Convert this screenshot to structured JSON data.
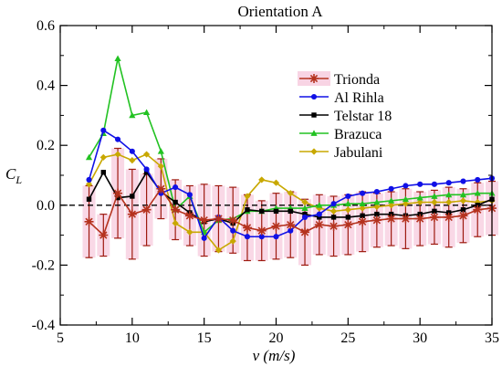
{
  "chart_data": {
    "type": "line",
    "title": "Orientation A",
    "xlabel": "v (m/s)",
    "ylabel_main": "C",
    "ylabel_sub": "L",
    "xlim": [
      5,
      35
    ],
    "ylim": [
      -0.4,
      0.6
    ],
    "xticks": [
      5,
      10,
      15,
      20,
      25,
      30,
      35
    ],
    "yticks": [
      -0.4,
      -0.2,
      0.0,
      0.2,
      0.4,
      0.6
    ],
    "xtick_labels": [
      "5",
      "10",
      "15",
      "20",
      "25",
      "30",
      "35"
    ],
    "ytick_labels": [
      "-0.4",
      "-0.2",
      "0.0",
      "0.2",
      "0.4",
      "0.6"
    ],
    "grid": false,
    "legend_position": "top-right",
    "zero_line": true,
    "series": [
      {
        "name": "Trionda",
        "color": "#b5321e",
        "marker": "asterisk",
        "error_color": "#9e1a10",
        "band_color": "#f4b8d2",
        "x": [
          7,
          8,
          9,
          10,
          11,
          12,
          13,
          14,
          15,
          16,
          17,
          18,
          19,
          20,
          21,
          22,
          23,
          24,
          25,
          26,
          27,
          28,
          29,
          30,
          31,
          32,
          33,
          34,
          35
        ],
        "y": [
          -0.055,
          -0.1,
          0.04,
          -0.03,
          -0.015,
          0.055,
          -0.015,
          -0.035,
          -0.05,
          -0.045,
          -0.05,
          -0.075,
          -0.085,
          -0.07,
          -0.065,
          -0.09,
          -0.065,
          -0.07,
          -0.065,
          -0.055,
          -0.05,
          -0.045,
          -0.045,
          -0.045,
          -0.04,
          -0.04,
          -0.035,
          -0.015,
          -0.01
        ],
        "err": [
          0.12,
          0.07,
          0.15,
          0.15,
          0.12,
          0.1,
          0.1,
          0.1,
          0.12,
          0.11,
          0.11,
          0.11,
          0.1,
          0.11,
          0.11,
          0.11,
          0.1,
          0.1,
          0.1,
          0.1,
          0.09,
          0.09,
          0.1,
          0.09,
          0.09,
          0.1,
          0.09,
          0.09,
          0.09
        ]
      },
      {
        "name": "Al Rihla",
        "color": "#1010e6",
        "marker": "circle",
        "x": [
          7,
          8,
          9,
          10,
          11,
          12,
          13,
          14,
          15,
          16,
          17,
          18,
          19,
          20,
          21,
          22,
          23,
          24,
          25,
          26,
          27,
          28,
          29,
          30,
          31,
          32,
          33,
          34,
          35
        ],
        "y": [
          0.085,
          0.25,
          0.22,
          0.18,
          0.12,
          0.04,
          0.06,
          0.035,
          -0.11,
          -0.04,
          -0.085,
          -0.105,
          -0.105,
          -0.105,
          -0.085,
          -0.04,
          -0.03,
          0.005,
          0.03,
          0.04,
          0.045,
          0.055,
          0.065,
          0.07,
          0.07,
          0.075,
          0.08,
          0.085,
          0.09
        ]
      },
      {
        "name": "Telstar 18",
        "color": "#000000",
        "marker": "square",
        "x": [
          7,
          8,
          9,
          10,
          11,
          12,
          13,
          14,
          15,
          16,
          17,
          18,
          19,
          20,
          21,
          22,
          23,
          24,
          25,
          26,
          27,
          28,
          29,
          30,
          31,
          32,
          33,
          34,
          35
        ],
        "y": [
          0.02,
          0.11,
          0.025,
          0.03,
          0.11,
          0.045,
          0.01,
          -0.025,
          -0.055,
          -0.045,
          -0.06,
          -0.015,
          -0.02,
          -0.02,
          -0.02,
          -0.03,
          -0.04,
          -0.04,
          -0.04,
          -0.035,
          -0.03,
          -0.03,
          -0.035,
          -0.03,
          -0.02,
          -0.025,
          -0.015,
          0.0,
          0.02
        ]
      },
      {
        "name": "Brazuca",
        "color": "#22c222",
        "marker": "triangle",
        "x": [
          7,
          8,
          9,
          10,
          11,
          12,
          13,
          14,
          15,
          16,
          17,
          18,
          19,
          20,
          21,
          22,
          23,
          24,
          25,
          26,
          27,
          28,
          29,
          30,
          31,
          32,
          33,
          34,
          35
        ],
        "y": [
          0.16,
          0.24,
          0.49,
          0.3,
          0.31,
          0.18,
          -0.015,
          0.03,
          -0.09,
          -0.05,
          -0.045,
          -0.02,
          -0.02,
          -0.01,
          -0.01,
          -0.01,
          0.0,
          0.0,
          0.005,
          0.005,
          0.01,
          0.015,
          0.02,
          0.025,
          0.03,
          0.035,
          0.035,
          0.04,
          0.04
        ]
      },
      {
        "name": "Jabulani",
        "color": "#c8a800",
        "marker": "diamond",
        "x": [
          7,
          8,
          9,
          10,
          11,
          12,
          13,
          14,
          15,
          16,
          17,
          18,
          19,
          20,
          21,
          22,
          23,
          24,
          25,
          26,
          27,
          28,
          29,
          30,
          31,
          32,
          33,
          34,
          35
        ],
        "y": [
          0.07,
          0.16,
          0.17,
          0.15,
          0.17,
          0.13,
          -0.06,
          -0.09,
          -0.09,
          -0.15,
          -0.12,
          0.03,
          0.085,
          0.075,
          0.04,
          0.01,
          -0.01,
          -0.02,
          -0.015,
          -0.01,
          -0.005,
          0.0,
          0.005,
          0.01,
          0.01,
          0.01,
          0.015,
          0.01,
          0.015
        ]
      }
    ]
  }
}
